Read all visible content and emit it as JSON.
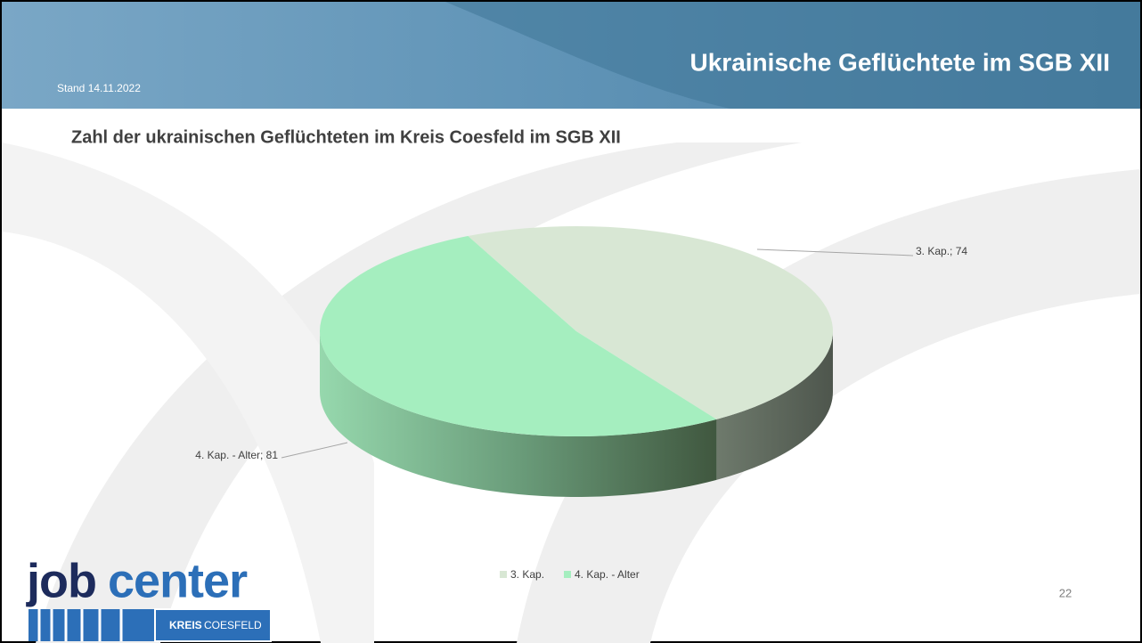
{
  "slide": {
    "header": "Ukrainische Geflüchtete im SGB XII",
    "date": "Stand 14.11.2022",
    "page_number": "22"
  },
  "logo": {
    "part1": "job",
    "part2": "center",
    "kreis": "KREIS",
    "name": "COESFELD"
  },
  "chart_data": {
    "type": "pie",
    "title": "Zahl der ukrainischen Geflüchteten im Kreis Coesfeld im SGB XII",
    "categories": [
      "3. Kap.",
      "4. Kap. - Alter"
    ],
    "values": [
      74,
      81
    ],
    "value_labels": [
      "3. Kap.; 74",
      "4. Kap. - Alter; 81"
    ],
    "colors": [
      "#d8e7d4",
      "#a5eebf"
    ],
    "legend": "bottom"
  }
}
